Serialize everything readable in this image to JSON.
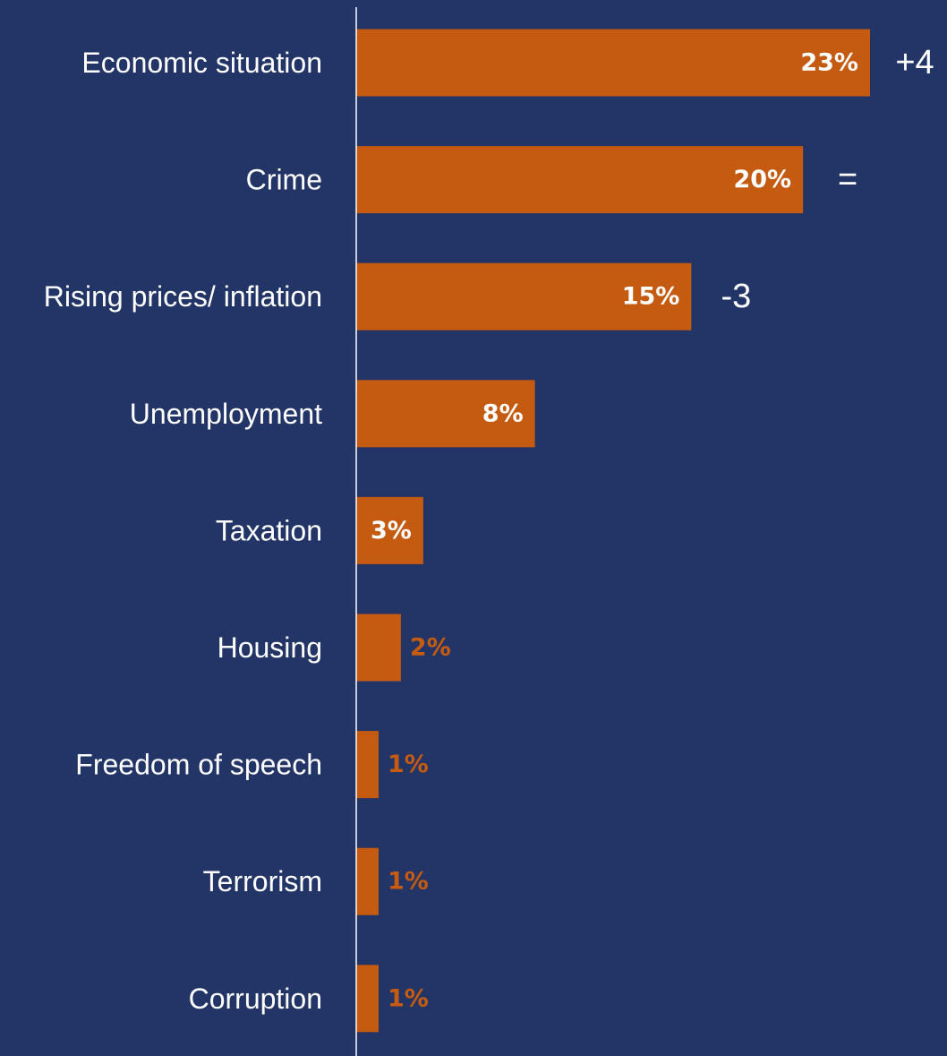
{
  "chart_data": {
    "type": "bar",
    "orientation": "horizontal",
    "categories": [
      "Economic situation",
      "Crime",
      "Rising prices/ inflation",
      "Unemployment",
      "Taxation",
      "Housing",
      "Freedom of speech",
      "Terrorism",
      "Corruption"
    ],
    "values": [
      23,
      20,
      15,
      8,
      3,
      2,
      1,
      1,
      1
    ],
    "value_labels": [
      "23%",
      "20%",
      "15%",
      "8%",
      "3%",
      "2%",
      "1%",
      "1%",
      "1%"
    ],
    "change_labels": [
      "+4",
      "=",
      "-3",
      "",
      "",
      "",
      "",
      "",
      ""
    ],
    "title": "",
    "xlabel": "",
    "ylabel": "",
    "xlim": [
      0,
      23
    ],
    "grid": false,
    "legend": "none"
  },
  "colors": {
    "background": "#223566",
    "bar": "#C55A11",
    "axis_line": "#ffffff",
    "text": "#ffffff",
    "label_outside": "#C55A11"
  }
}
